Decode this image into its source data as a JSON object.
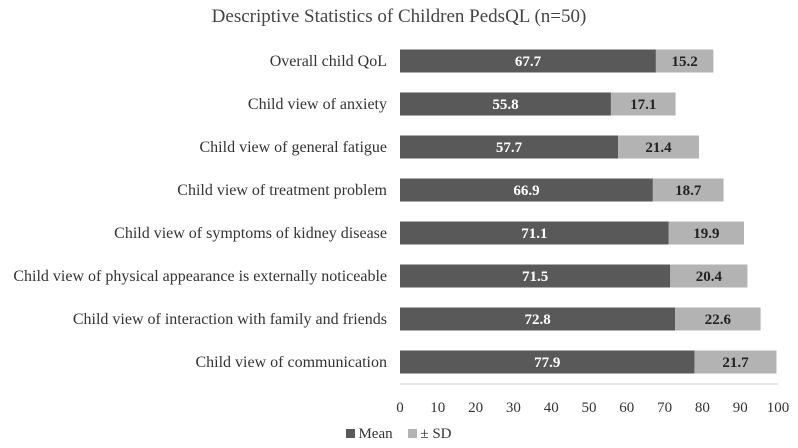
{
  "chart_data": {
    "type": "bar",
    "orientation": "horizontal",
    "stacked": true,
    "title": "Descriptive Statistics of Children PedsQL (n=50)",
    "categories": [
      "Overall child QoL",
      "Child view of anxiety",
      "Child view of general fatigue",
      "Child view of treatment problem",
      "Child view of symptoms of kidney disease",
      "Child view of physical appearance is externally noticeable",
      "Child view of interaction with family and friends",
      "Child view of communication"
    ],
    "series": [
      {
        "name": "Mean",
        "legend_label": "■Mean",
        "color": "#595959",
        "label_color": "#ffffff",
        "values": [
          67.7,
          55.8,
          57.7,
          66.9,
          71.1,
          71.5,
          72.8,
          77.9
        ],
        "labels": [
          "67.7",
          "55.8",
          "57.7",
          "66.9",
          "71.1",
          "71.5",
          "72.8",
          "77.9"
        ]
      },
      {
        "name": "± SD",
        "legend_label": "■± SD",
        "color": "#b3b3b3",
        "label_color": "#222222",
        "values": [
          15.2,
          17.1,
          21.4,
          18.7,
          19.9,
          20.4,
          22.6,
          21.7
        ],
        "labels": [
          "15.2",
          "17.1",
          "21.4",
          "18.7",
          "19.9",
          "20.4",
          "22.6",
          "21.7"
        ]
      }
    ],
    "xlim": [
      0,
      100
    ],
    "xticks": [
      0,
      10,
      20,
      30,
      40,
      50,
      60,
      70,
      80,
      90,
      100
    ],
    "xtick_labels": [
      "0",
      "10",
      "20",
      "30",
      "40",
      "50",
      "60",
      "70",
      "80",
      "90",
      "100"
    ],
    "xlabel": "",
    "ylabel": "",
    "grid": false,
    "legend_position": "bottom"
  }
}
